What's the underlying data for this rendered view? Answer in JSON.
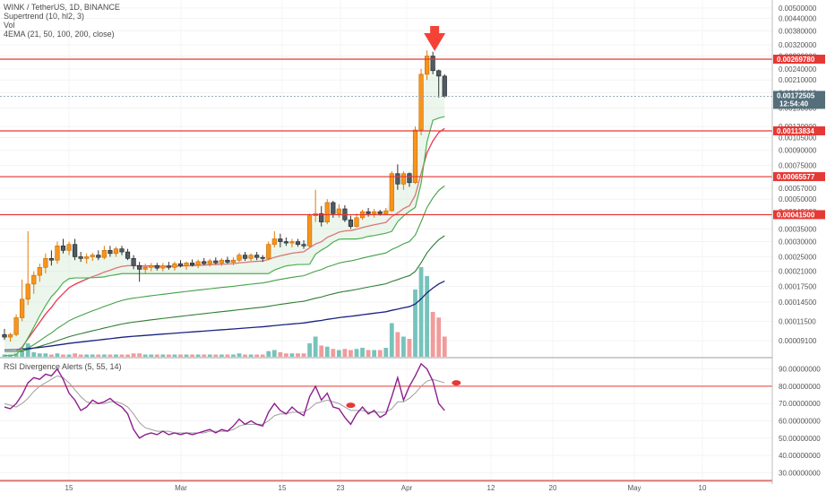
{
  "legend": {
    "symbol_line": "WINK / TetherUS, 1D, BINANCE",
    "supertrend_line": "Supertrend (10, hl2, 3)",
    "vol_line": "Vol",
    "ema_line": "4EMA (21, 50, 100, 200, close)",
    "rsi_line": "RSI Divergence Alerts (5, 55, 14)"
  },
  "colors": {
    "up": "#f7941d",
    "down": "#4f5b66",
    "level_line": "#e53935",
    "vol_up": "#5fb8b0",
    "vol_down": "#ef8a8a",
    "ema21": "#e53950",
    "ema50": "#43a047",
    "ema100": "#2e7d32",
    "ema200": "#1a237e",
    "supertrend": "#4caf50",
    "rsi": "#8e1e8e",
    "rsi_signal": "#9e9e9e",
    "arrow": "#f44336"
  },
  "price_axis": {
    "ticks": [
      "0.00500000",
      "0.00440000",
      "0.00380000",
      "0.00320000",
      "0.00280000",
      "0.00240000",
      "0.00210000",
      "0.00180000",
      "0.00150000",
      "0.00120000",
      "0.00105000",
      "0.00090000",
      "0.00075000",
      "0.00065000",
      "0.00057000",
      "0.00050000",
      "0.00043000",
      "0.00035000",
      "0.00030000",
      "0.00025000",
      "0.00021000",
      "0.00017500",
      "0.00014500",
      "0.00011500",
      "0.00009100"
    ]
  },
  "rsi_axis": {
    "ticks": [
      "90.00000000",
      "80.00000000",
      "70.00000000",
      "60.00000000",
      "50.00000000",
      "40.00000000",
      "30.00000000"
    ]
  },
  "price_tags": [
    {
      "value": 0.0026978,
      "label": "0.00269780"
    },
    {
      "value": 0.00113834,
      "label": "0.00113834"
    },
    {
      "value": 0.00065577,
      "label": "0.00065577"
    },
    {
      "value": 0.000415,
      "label": "0.00041500"
    }
  ],
  "last_price": {
    "label": "0.00172505",
    "countdown": "12:54:40"
  },
  "time_axis": [
    "15",
    "Mar",
    "15",
    "23",
    "Apr",
    "12",
    "20",
    "May",
    "10"
  ],
  "chart_data": {
    "type": "candlestick",
    "title": "WINK / TetherUS, 1D, BINANCE",
    "scale": "log",
    "ylim": [
      7.5e-05,
      0.0055
    ],
    "horizontal_levels": [
      0.0026978,
      0.00113834,
      0.00065577,
      0.000415
    ],
    "ohlc": [
      [
        9.8e-05,
        0.000105,
        9.2e-05,
        9.5e-05
      ],
      [
        9.5e-05,
        0.0001,
        9e-05,
        9.8e-05
      ],
      [
        9.8e-05,
        0.000125,
        9.6e-05,
        0.00012
      ],
      [
        0.00012,
        0.00019,
        0.000115,
        0.00015
      ],
      [
        0.00015,
        0.00034,
        0.00014,
        0.00018
      ],
      [
        0.00018,
        0.00021,
        0.00016,
        0.0002
      ],
      [
        0.0002,
        0.00023,
        0.000185,
        0.00022
      ],
      [
        0.00022,
        0.00026,
        0.000205,
        0.000245
      ],
      [
        0.000245,
        0.00027,
        0.000225,
        0.00024
      ],
      [
        0.00024,
        0.0003,
        0.00023,
        0.000285
      ],
      [
        0.000285,
        0.00031,
        0.00026,
        0.00027
      ],
      [
        0.00027,
        0.0003,
        0.000255,
        0.00029
      ],
      [
        0.00029,
        0.00031,
        0.00024,
        0.00025
      ],
      [
        0.00025,
        0.000265,
        0.000235,
        0.000245
      ],
      [
        0.000245,
        0.00026,
        0.00023,
        0.00025
      ],
      [
        0.00025,
        0.000262,
        0.000238,
        0.000255
      ],
      [
        0.000255,
        0.00027,
        0.00024,
        0.000248
      ],
      [
        0.000248,
        0.000285,
        0.000242,
        0.00027
      ],
      [
        0.00027,
        0.000285,
        0.00025,
        0.00026
      ],
      [
        0.00026,
        0.000282,
        0.00025,
        0.000275
      ],
      [
        0.000275,
        0.000285,
        0.000255,
        0.000265
      ],
      [
        0.000265,
        0.000275,
        0.00024,
        0.000245
      ],
      [
        0.000245,
        0.000255,
        0.000215,
        0.000225
      ],
      [
        0.000225,
        0.000235,
        0.000185,
        0.000215
      ],
      [
        0.000215,
        0.00023,
        0.000205,
        0.00022
      ],
      [
        0.00022,
        0.000232,
        0.00021,
        0.000225
      ],
      [
        0.000225,
        0.000232,
        0.000212,
        0.000218
      ],
      [
        0.000218,
        0.000232,
        0.00021,
        0.000224
      ],
      [
        0.000224,
        0.000235,
        0.000214,
        0.00022
      ],
      [
        0.00022,
        0.000236,
        0.000212,
        0.00023
      ],
      [
        0.00023,
        0.00024,
        0.00022,
        0.000224
      ],
      [
        0.000224,
        0.000236,
        0.000214,
        0.000232
      ],
      [
        0.000232,
        0.000242,
        0.000222,
        0.000226
      ],
      [
        0.000226,
        0.000242,
        0.000218,
        0.000236
      ],
      [
        0.000236,
        0.000246,
        0.000226,
        0.00023
      ],
      [
        0.00023,
        0.000244,
        0.000222,
        0.000238
      ],
      [
        0.000238,
        0.000248,
        0.000228,
        0.000232
      ],
      [
        0.000232,
        0.000246,
        0.000224,
        0.00024
      ],
      [
        0.00024,
        0.00025,
        0.00023,
        0.000234
      ],
      [
        0.000234,
        0.000248,
        0.000226,
        0.00024
      ],
      [
        0.00024,
        0.000262,
        0.000235,
        0.000255
      ],
      [
        0.000255,
        0.000265,
        0.000238,
        0.000245
      ],
      [
        0.000245,
        0.00026,
        0.000238,
        0.000255
      ],
      [
        0.000255,
        0.000265,
        0.00024,
        0.000248
      ],
      [
        0.000248,
        0.000255,
        0.000235,
        0.000245
      ],
      [
        0.000245,
        0.0003,
        0.00024,
        0.00029
      ],
      [
        0.00029,
        0.00034,
        0.00028,
        0.00031
      ],
      [
        0.00031,
        0.00033,
        0.00028,
        0.0003
      ],
      [
        0.0003,
        0.000315,
        0.000285,
        0.000295
      ],
      [
        0.000295,
        0.00031,
        0.00028,
        0.0003
      ],
      [
        0.0003,
        0.00031,
        0.000282,
        0.00029
      ],
      [
        0.00029,
        0.000305,
        0.000275,
        0.000285
      ],
      [
        0.000285,
        0.00042,
        0.00028,
        0.00041
      ],
      [
        0.00041,
        0.00056,
        0.00038,
        0.00042
      ],
      [
        0.00042,
        0.00046,
        0.00036,
        0.00038
      ],
      [
        0.00038,
        0.0005,
        0.00037,
        0.00048
      ],
      [
        0.00048,
        0.00049,
        0.0004,
        0.00042
      ],
      [
        0.00042,
        0.00047,
        0.0004,
        0.000445
      ],
      [
        0.000445,
        0.000465,
        0.00038,
        0.00039
      ],
      [
        0.00039,
        0.00041,
        0.00035,
        0.00036
      ],
      [
        0.00036,
        0.00042,
        0.000355,
        0.0004
      ],
      [
        0.0004,
        0.00044,
        0.00039,
        0.00043
      ],
      [
        0.00043,
        0.00045,
        0.000405,
        0.00042
      ],
      [
        0.00042,
        0.000445,
        0.0004,
        0.00043
      ],
      [
        0.00043,
        0.00044,
        0.00041,
        0.00042
      ],
      [
        0.00042,
        0.00045,
        0.000415,
        0.000435
      ],
      [
        0.000435,
        0.0007,
        0.00043,
        0.00068
      ],
      [
        0.00068,
        0.00076,
        0.00056,
        0.0006
      ],
      [
        0.0006,
        0.0007,
        0.00056,
        0.00068
      ],
      [
        0.00068,
        0.00069,
        0.00058,
        0.00061
      ],
      [
        0.00061,
        0.0012,
        0.0006,
        0.00115
      ],
      [
        0.00115,
        0.0024,
        0.00108,
        0.00225
      ],
      [
        0.00225,
        0.003,
        0.0021,
        0.0028
      ],
      [
        0.0028,
        0.00295,
        0.00225,
        0.00235
      ],
      [
        0.00235,
        0.00238,
        0.0017,
        0.0022
      ],
      [
        0.0022,
        0.00225,
        0.0017,
        0.001725
      ]
    ],
    "volume": [
      {
        "v": 2,
        "up": true
      },
      {
        "v": 2,
        "up": true
      },
      {
        "v": 3,
        "up": true
      },
      {
        "v": 5,
        "up": true
      },
      {
        "v": 12,
        "up": true
      },
      {
        "v": 4,
        "up": true
      },
      {
        "v": 3,
        "up": true
      },
      {
        "v": 3,
        "up": true
      },
      {
        "v": 2,
        "up": false
      },
      {
        "v": 3,
        "up": true
      },
      {
        "v": 2,
        "up": false
      },
      {
        "v": 2,
        "up": true
      },
      {
        "v": 3,
        "up": false
      },
      {
        "v": 2,
        "up": false
      },
      {
        "v": 2,
        "up": true
      },
      {
        "v": 2,
        "up": true
      },
      {
        "v": 2,
        "up": false
      },
      {
        "v": 2,
        "up": true
      },
      {
        "v": 2,
        "up": false
      },
      {
        "v": 2,
        "up": true
      },
      {
        "v": 2,
        "up": false
      },
      {
        "v": 2,
        "up": false
      },
      {
        "v": 3,
        "up": false
      },
      {
        "v": 3,
        "up": false
      },
      {
        "v": 2,
        "up": true
      },
      {
        "v": 2,
        "up": true
      },
      {
        "v": 2,
        "up": false
      },
      {
        "v": 2,
        "up": true
      },
      {
        "v": 2,
        "up": false
      },
      {
        "v": 2,
        "up": true
      },
      {
        "v": 2,
        "up": false
      },
      {
        "v": 2,
        "up": true
      },
      {
        "v": 2,
        "up": false
      },
      {
        "v": 2,
        "up": true
      },
      {
        "v": 2,
        "up": false
      },
      {
        "v": 2,
        "up": true
      },
      {
        "v": 2,
        "up": false
      },
      {
        "v": 2,
        "up": true
      },
      {
        "v": 2,
        "up": false
      },
      {
        "v": 2,
        "up": true
      },
      {
        "v": 3,
        "up": true
      },
      {
        "v": 2,
        "up": false
      },
      {
        "v": 2,
        "up": true
      },
      {
        "v": 2,
        "up": false
      },
      {
        "v": 2,
        "up": false
      },
      {
        "v": 5,
        "up": true
      },
      {
        "v": 6,
        "up": true
      },
      {
        "v": 4,
        "up": false
      },
      {
        "v": 3,
        "up": false
      },
      {
        "v": 3,
        "up": true
      },
      {
        "v": 3,
        "up": false
      },
      {
        "v": 3,
        "up": false
      },
      {
        "v": 12,
        "up": true
      },
      {
        "v": 18,
        "up": true
      },
      {
        "v": 10,
        "up": false
      },
      {
        "v": 9,
        "up": true
      },
      {
        "v": 7,
        "up": false
      },
      {
        "v": 6,
        "up": true
      },
      {
        "v": 7,
        "up": false
      },
      {
        "v": 6,
        "up": false
      },
      {
        "v": 7,
        "up": true
      },
      {
        "v": 8,
        "up": true
      },
      {
        "v": 6,
        "up": false
      },
      {
        "v": 6,
        "up": true
      },
      {
        "v": 6,
        "up": false
      },
      {
        "v": 8,
        "up": true
      },
      {
        "v": 30,
        "up": true
      },
      {
        "v": 22,
        "up": false
      },
      {
        "v": 18,
        "up": true
      },
      {
        "v": 16,
        "up": false
      },
      {
        "v": 60,
        "up": true
      },
      {
        "v": 80,
        "up": true
      },
      {
        "v": 72,
        "up": true
      },
      {
        "v": 40,
        "up": false
      },
      {
        "v": 35,
        "up": false
      },
      {
        "v": 18,
        "up": false
      }
    ],
    "rsi": [
      68,
      67,
      70,
      75,
      82,
      85,
      84,
      87,
      86,
      90,
      84,
      76,
      72,
      66,
      68,
      72,
      70,
      71,
      73,
      70,
      68,
      64,
      55,
      50,
      52,
      53,
      52,
      54,
      52,
      53,
      52,
      53,
      52,
      53,
      54,
      55,
      53,
      55,
      54,
      57,
      61,
      58,
      60,
      58,
      57,
      65,
      70,
      66,
      64,
      68,
      65,
      63,
      74,
      80,
      72,
      76,
      68,
      67,
      62,
      58,
      64,
      68,
      64,
      66,
      62,
      64,
      74,
      85,
      72,
      80,
      86,
      93,
      90,
      83,
      70,
      66
    ],
    "rsi_signal": [
      70,
      69,
      68,
      70,
      73,
      77,
      80,
      82,
      84,
      86,
      85,
      82,
      78,
      74,
      71,
      70,
      70,
      70,
      71,
      71,
      70,
      68,
      64,
      59,
      56,
      55,
      54,
      54,
      54,
      53,
      53,
      53,
      53,
      53,
      53,
      54,
      54,
      54,
      54,
      55,
      57,
      58,
      58,
      58,
      58,
      60,
      63,
      64,
      64,
      65,
      65,
      65,
      67,
      70,
      71,
      72,
      71,
      70,
      68,
      66,
      66,
      66,
      65,
      65,
      65,
      65,
      67,
      71,
      71,
      73,
      76,
      80,
      83,
      84,
      83,
      82
    ]
  }
}
